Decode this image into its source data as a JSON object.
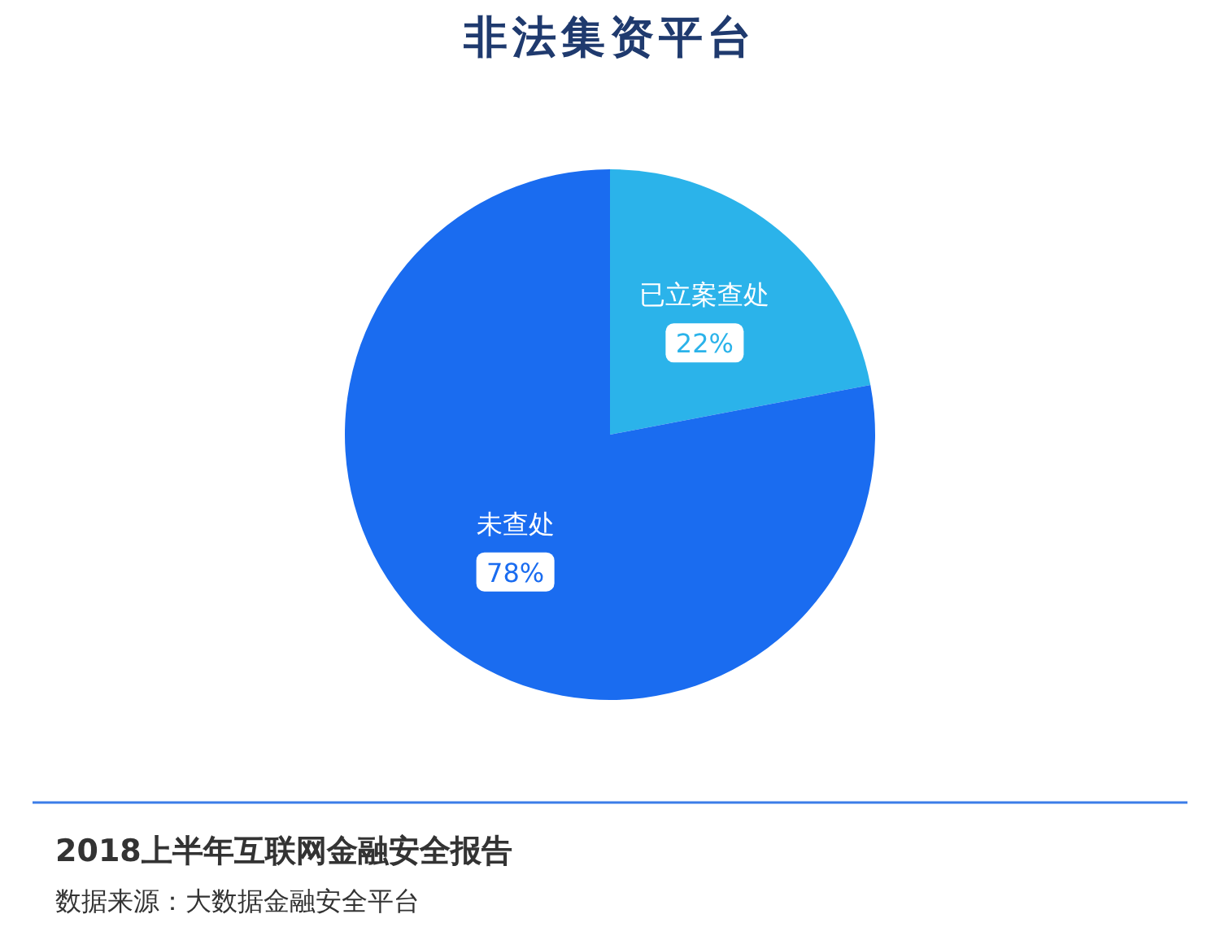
{
  "chart_data": {
    "type": "pie",
    "title": "非法集资平台",
    "categories": [
      "已立案查处",
      "未查处"
    ],
    "values": [
      22,
      78
    ],
    "colors": [
      "#2bb3ea",
      "#1a6cf0"
    ],
    "value_labels": [
      "22%",
      "78%"
    ],
    "annotations": [
      "2018上半年互联网金融安全报告",
      "数据来源：大数据金融安全平台"
    ]
  }
}
